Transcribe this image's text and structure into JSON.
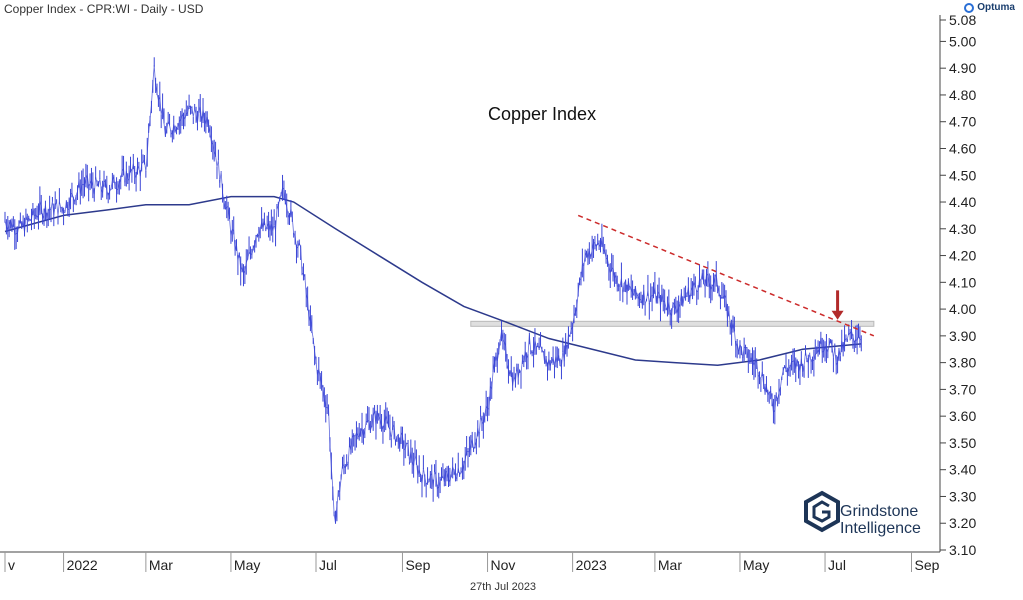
{
  "header": {
    "title": "Copper Index - CPR:WI - Daily - USD",
    "brand": "Optuma"
  },
  "footer": {
    "date": "27th Jul 2023"
  },
  "logo": {
    "line1": "Grindstone",
    "line2": "Intelligence"
  },
  "colors": {
    "price": "#3a45d6",
    "ma": "#2d3a8c",
    "trendline": "#cc2b2b",
    "support": "#b9b9b9",
    "arrow": "#b22a2a",
    "logo": "#1d3557"
  },
  "chart_data": {
    "type": "line",
    "title": "Copper Index",
    "xlabel": "",
    "ylabel": "",
    "ylim": [
      3.1,
      5.08
    ],
    "y_ticks": [
      "5.08",
      "5.00",
      "4.90",
      "4.80",
      "4.70",
      "4.60",
      "4.50",
      "4.40",
      "4.30",
      "4.20",
      "4.10",
      "4.00",
      "3.90",
      "3.80",
      "3.70",
      "3.60",
      "3.50",
      "3.40",
      "3.30",
      "3.20",
      "3.10"
    ],
    "x_ticks": [
      "v",
      "2022",
      "Mar",
      "May",
      "Jul",
      "Sep",
      "Nov",
      "2023",
      "Mar",
      "May",
      "Jul",
      "Sep"
    ],
    "x_range": [
      "2021-11-20",
      "2023-09-20"
    ],
    "grid": false,
    "series": [
      {
        "style": "daily price bars",
        "x": [
          "2021-11-20",
          "2021-12-01",
          "2021-12-15",
          "2022-01-01",
          "2022-01-15",
          "2022-02-01",
          "2022-02-15",
          "2022-03-01",
          "2022-03-07",
          "2022-03-15",
          "2022-04-01",
          "2022-04-15",
          "2022-05-01",
          "2022-05-10",
          "2022-05-20",
          "2022-06-01",
          "2022-06-08",
          "2022-06-20",
          "2022-07-01",
          "2022-07-10",
          "2022-07-14",
          "2022-07-20",
          "2022-08-01",
          "2022-08-15",
          "2022-09-01",
          "2022-09-15",
          "2022-09-28",
          "2022-10-15",
          "2022-11-01",
          "2022-11-10",
          "2022-11-20",
          "2022-12-01",
          "2022-12-15",
          "2022-12-25",
          "2023-01-01",
          "2023-01-10",
          "2023-01-20",
          "2023-02-01",
          "2023-02-15",
          "2023-03-01",
          "2023-03-15",
          "2023-04-01",
          "2023-04-15",
          "2023-05-01",
          "2023-05-15",
          "2023-05-25",
          "2023-06-01",
          "2023-06-15",
          "2023-06-25",
          "2023-07-01",
          "2023-07-10",
          "2023-07-18",
          "2023-07-27"
        ],
        "values": [
          4.33,
          4.3,
          4.37,
          4.38,
          4.47,
          4.45,
          4.5,
          4.53,
          4.9,
          4.66,
          4.74,
          4.71,
          4.3,
          4.12,
          4.3,
          4.3,
          4.45,
          4.2,
          3.8,
          3.62,
          3.2,
          3.4,
          3.55,
          3.6,
          3.5,
          3.38,
          3.35,
          3.42,
          3.63,
          3.9,
          3.73,
          3.87,
          3.8,
          3.82,
          3.95,
          4.2,
          4.25,
          4.12,
          4.05,
          4.05,
          4.0,
          4.1,
          4.1,
          3.85,
          3.78,
          3.63,
          3.77,
          3.8,
          3.85,
          3.88,
          3.82,
          3.89,
          3.91
        ]
      },
      {
        "style": "moving average",
        "x": [
          "2021-11-20",
          "2022-01-01",
          "2022-02-01",
          "2022-03-01",
          "2022-04-01",
          "2022-05-01",
          "2022-06-01",
          "2022-06-15",
          "2022-07-15",
          "2022-08-15",
          "2022-09-15",
          "2022-10-15",
          "2022-11-15",
          "2022-12-15",
          "2023-01-15",
          "2023-02-15",
          "2023-03-15",
          "2023-04-15",
          "2023-05-15",
          "2023-06-15",
          "2023-07-27"
        ],
        "values": [
          4.29,
          4.35,
          4.37,
          4.39,
          4.39,
          4.42,
          4.42,
          4.4,
          4.3,
          4.2,
          4.1,
          4.01,
          3.95,
          3.89,
          3.85,
          3.81,
          3.8,
          3.79,
          3.81,
          3.85,
          3.87
        ]
      }
    ],
    "trendline": {
      "x": [
        "2023-01-05",
        "2023-08-05"
      ],
      "y": [
        4.35,
        3.9
      ]
    },
    "support": {
      "x": [
        "2022-10-20",
        "2023-08-05"
      ],
      "y": 3.945
    },
    "arrow": {
      "x": "2023-07-10",
      "y_from": 4.07,
      "y_to": 3.96
    },
    "annotations": [
      "Copper Index"
    ]
  }
}
